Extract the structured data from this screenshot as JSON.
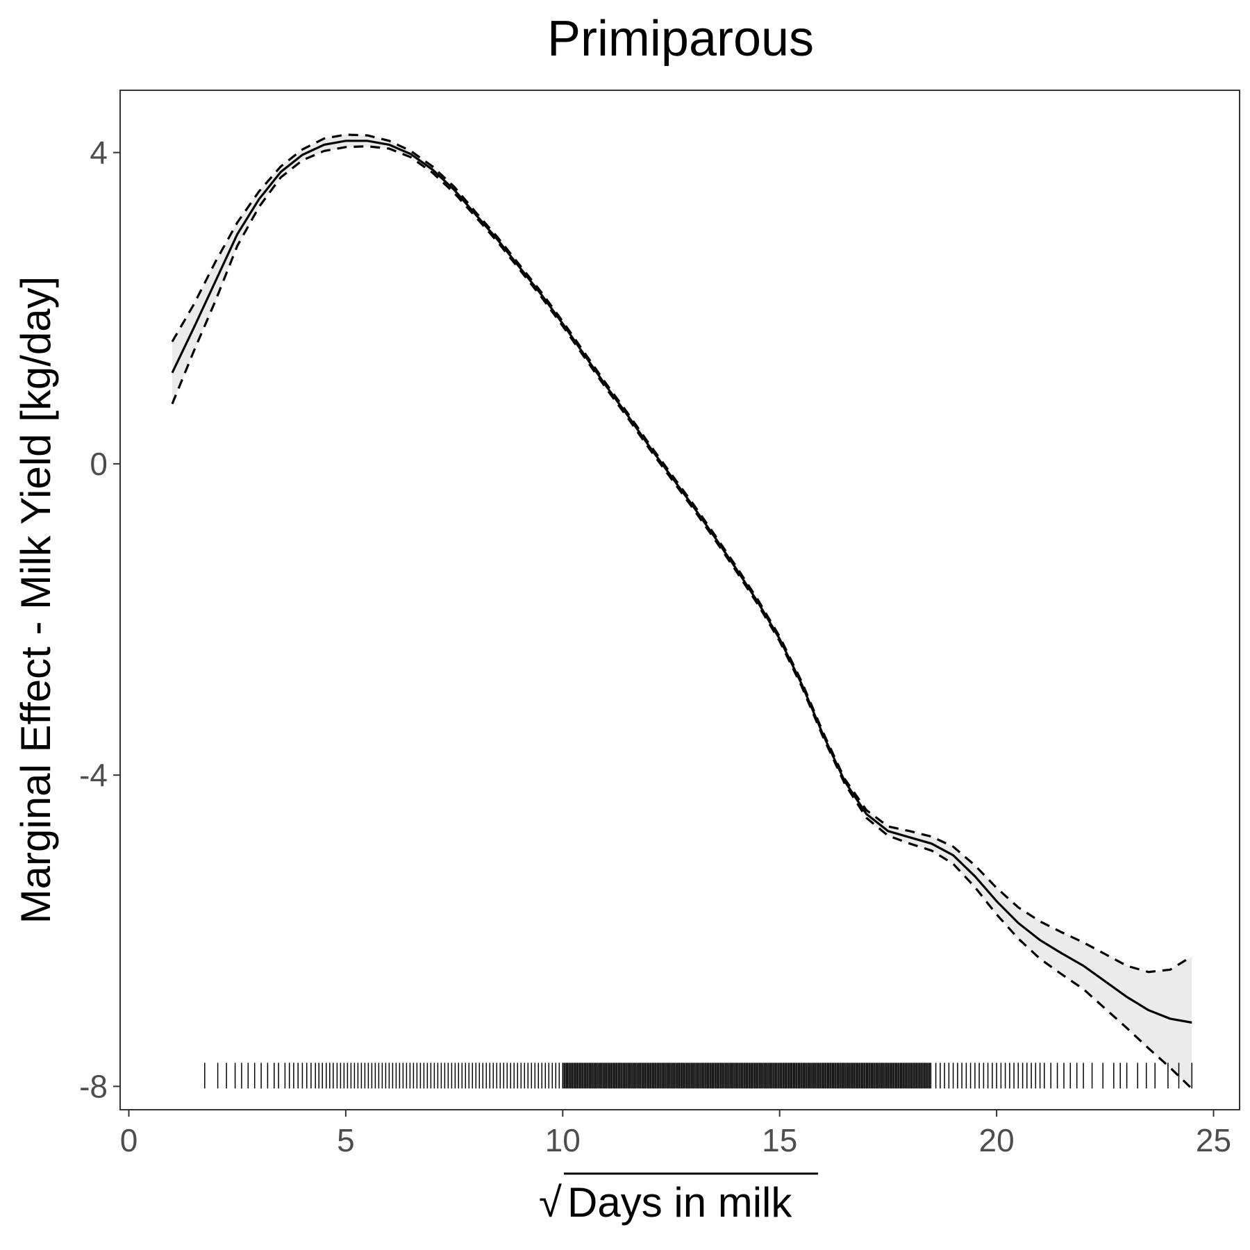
{
  "chart_data": {
    "type": "line",
    "title": "Primiparous",
    "xlabel": "Days in milk",
    "xlabel_prefix": "√",
    "ylabel": "Marginal Effect - Milk Yield [kg/day]",
    "xlim": [
      -0.2,
      25.6
    ],
    "ylim": [
      -8.3,
      4.8
    ],
    "x_ticks": [
      0,
      5,
      10,
      15,
      20,
      25
    ],
    "y_ticks": [
      -8,
      -4,
      0,
      4
    ],
    "x_tick_labels": [
      "0",
      "5",
      "10",
      "15",
      "20",
      "25"
    ],
    "y_tick_labels": [
      "-8",
      "-4",
      "0",
      "4"
    ],
    "grid": false,
    "legend": "none",
    "colors": {
      "line": "#000000",
      "band": "#ebebeb",
      "axis": "#333333",
      "tick_label": "#4d4d4d"
    },
    "series": [
      {
        "role": "estimate",
        "style": "solid",
        "x": [
          1.0,
          1.5,
          2.0,
          2.5,
          3.0,
          3.5,
          4.0,
          4.5,
          5.0,
          5.5,
          6.0,
          6.5,
          7.0,
          7.5,
          8.0,
          8.5,
          9.0,
          9.5,
          10.0,
          10.5,
          11.0,
          11.5,
          12.0,
          12.5,
          13.0,
          13.5,
          14.0,
          14.5,
          15.0,
          15.5,
          16.0,
          16.5,
          17.0,
          17.5,
          18.0,
          18.5,
          19.0,
          19.5,
          20.0,
          20.5,
          21.0,
          21.5,
          22.0,
          22.5,
          23.0,
          23.5,
          24.0,
          24.5
        ],
        "y": [
          1.17,
          1.75,
          2.35,
          2.95,
          3.4,
          3.75,
          3.97,
          4.1,
          4.15,
          4.15,
          4.1,
          3.98,
          3.78,
          3.52,
          3.2,
          2.88,
          2.53,
          2.18,
          1.8,
          1.4,
          1.0,
          0.62,
          0.22,
          -0.16,
          -0.54,
          -0.94,
          -1.35,
          -1.78,
          -2.25,
          -2.82,
          -3.48,
          -4.08,
          -4.5,
          -4.72,
          -4.8,
          -4.88,
          -5.03,
          -5.3,
          -5.62,
          -5.9,
          -6.12,
          -6.29,
          -6.45,
          -6.65,
          -6.85,
          -7.02,
          -7.13,
          -7.18
        ]
      },
      {
        "role": "upper bound",
        "style": "dashed",
        "x": [
          1.0,
          1.5,
          2.0,
          2.5,
          3.0,
          3.5,
          4.0,
          4.5,
          5.0,
          5.5,
          6.0,
          6.5,
          7.0,
          7.5,
          8.0,
          8.5,
          9.0,
          9.5,
          10.0,
          10.5,
          11.0,
          11.5,
          12.0,
          12.5,
          13.0,
          13.5,
          14.0,
          14.5,
          15.0,
          15.5,
          16.0,
          16.5,
          17.0,
          17.5,
          18.0,
          18.5,
          19.0,
          19.5,
          20.0,
          20.5,
          21.0,
          21.5,
          22.0,
          22.5,
          23.0,
          23.5,
          24.0,
          24.5
        ],
        "y": [
          1.57,
          2.05,
          2.6,
          3.1,
          3.5,
          3.82,
          4.04,
          4.18,
          4.23,
          4.22,
          4.15,
          4.02,
          3.82,
          3.56,
          3.23,
          2.91,
          2.56,
          2.21,
          1.83,
          1.43,
          1.03,
          0.65,
          0.25,
          -0.13,
          -0.51,
          -0.91,
          -1.32,
          -1.75,
          -2.22,
          -2.79,
          -3.45,
          -4.05,
          -4.45,
          -4.66,
          -4.72,
          -4.79,
          -4.92,
          -5.16,
          -5.45,
          -5.7,
          -5.88,
          -6.02,
          -6.15,
          -6.3,
          -6.45,
          -6.53,
          -6.5,
          -6.33
        ]
      },
      {
        "role": "lower bound",
        "style": "dashed",
        "x": [
          1.0,
          1.5,
          2.0,
          2.5,
          3.0,
          3.5,
          4.0,
          4.5,
          5.0,
          5.5,
          6.0,
          6.5,
          7.0,
          7.5,
          8.0,
          8.5,
          9.0,
          9.5,
          10.0,
          10.5,
          11.0,
          11.5,
          12.0,
          12.5,
          13.0,
          13.5,
          14.0,
          14.5,
          15.0,
          15.5,
          16.0,
          16.5,
          17.0,
          17.5,
          18.0,
          18.5,
          19.0,
          19.5,
          20.0,
          20.5,
          21.0,
          21.5,
          22.0,
          22.5,
          23.0,
          23.5,
          24.0,
          24.5
        ],
        "y": [
          0.77,
          1.45,
          2.1,
          2.8,
          3.3,
          3.68,
          3.9,
          4.02,
          4.07,
          4.08,
          4.05,
          3.94,
          3.74,
          3.48,
          3.17,
          2.85,
          2.5,
          2.15,
          1.77,
          1.37,
          0.97,
          0.59,
          0.19,
          -0.19,
          -0.57,
          -0.97,
          -1.38,
          -1.81,
          -2.28,
          -2.85,
          -3.51,
          -4.11,
          -4.55,
          -4.78,
          -4.88,
          -4.97,
          -5.14,
          -5.44,
          -5.79,
          -6.1,
          -6.36,
          -6.56,
          -6.75,
          -7.0,
          -7.25,
          -7.51,
          -7.76,
          -8.03
        ]
      }
    ],
    "rug": {
      "y": -8,
      "x_min": 1.75,
      "x_max": 24.5,
      "dense_from": 10.0,
      "dense_to": 18.5,
      "sparse_x": [
        1.75,
        2.05,
        2.25,
        2.45,
        2.6,
        2.75,
        2.9,
        3.05,
        3.2,
        3.35,
        3.45,
        3.6,
        3.7,
        3.8,
        3.9,
        4.0,
        4.1,
        4.2,
        4.3,
        4.38,
        4.46,
        4.55,
        4.63,
        4.71,
        4.8,
        4.88,
        4.96,
        5.04,
        5.12,
        5.2,
        5.28,
        5.36,
        5.44,
        5.52,
        5.6,
        5.68,
        5.76,
        5.84,
        5.92,
        6.0,
        6.08,
        6.16,
        6.24,
        6.32,
        6.4,
        6.48,
        6.56,
        6.64,
        6.72,
        6.8,
        6.88,
        6.96,
        7.04,
        7.12,
        7.2,
        7.28,
        7.36,
        7.44,
        7.52,
        7.6,
        7.68,
        7.76,
        7.84,
        7.92,
        8.0,
        8.08,
        8.16,
        8.24,
        8.32,
        8.4,
        8.48,
        8.56,
        8.64,
        8.72,
        8.8,
        8.88,
        8.96,
        9.04,
        9.12,
        9.2,
        9.28,
        9.36,
        9.44,
        9.52,
        9.6,
        9.68,
        9.76,
        9.84,
        9.92,
        18.6,
        18.7,
        18.8,
        18.9,
        19.0,
        19.1,
        19.2,
        19.3,
        19.4,
        19.5,
        19.6,
        19.7,
        19.8,
        19.9,
        20.0,
        20.1,
        20.2,
        20.3,
        20.4,
        20.5,
        20.6,
        20.7,
        20.8,
        20.9,
        21.0,
        21.1,
        21.25,
        21.4,
        21.55,
        21.7,
        21.85,
        22.0,
        22.2,
        22.45,
        22.7,
        22.85,
        23.0,
        23.25,
        23.45,
        23.65,
        23.95,
        24.2,
        24.5
      ]
    }
  }
}
